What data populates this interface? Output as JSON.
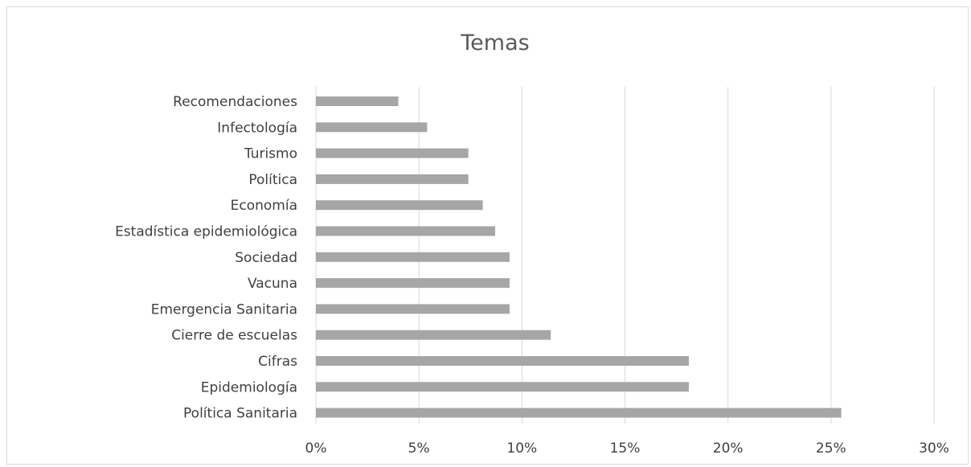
{
  "chart_data": {
    "type": "bar",
    "orientation": "horizontal",
    "title": "Temas",
    "xlabel": "",
    "ylabel": "",
    "categories": [
      "Recomendaciones",
      "Infectología",
      "Turismo",
      "Política",
      "Economía",
      "Estadística epidemiológica",
      "Sociedad",
      "Vacuna",
      "Emergencia Sanitaria",
      "Cierre de escuelas",
      "Cifras",
      "Epidemiología",
      "Política Sanitaria"
    ],
    "values": [
      4.0,
      5.4,
      7.4,
      7.4,
      8.1,
      8.7,
      9.4,
      9.4,
      9.4,
      11.4,
      18.1,
      18.1,
      25.5
    ],
    "xlim": [
      0,
      30
    ],
    "xticks": [
      "0%",
      "5%",
      "10%",
      "15%",
      "20%",
      "25%",
      "30%"
    ],
    "grid": "vertical",
    "legend": "none",
    "colors": {
      "bar": "#a6a6a6",
      "grid": "#d9d9d9",
      "text": "#404040",
      "title": "#595959"
    }
  }
}
